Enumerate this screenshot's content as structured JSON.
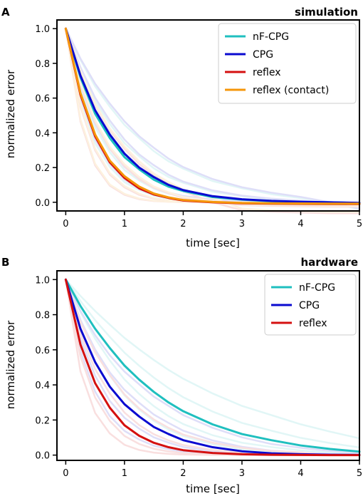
{
  "chart_data": [
    {
      "type": "line",
      "panel": "A",
      "title": "simulation",
      "xlabel": "time [sec]",
      "ylabel": "normalized error",
      "xlim": [
        -0.15,
        5.0
      ],
      "ylim": [
        -0.05,
        1.05
      ],
      "xticks": [
        0,
        1,
        2,
        3,
        4,
        5
      ],
      "yticks": [
        0.0,
        0.2,
        0.4,
        0.6,
        0.8,
        1.0
      ],
      "legend_position": "top-right",
      "series": [
        {
          "name": "nF-CPG",
          "color": "#1fbfbf",
          "x": [
            0,
            0.25,
            0.5,
            0.75,
            1.0,
            1.25,
            1.5,
            1.75,
            2.0,
            2.5,
            3.0,
            3.5,
            4.0,
            4.5,
            5.0
          ],
          "values": [
            1.0,
            0.72,
            0.51,
            0.37,
            0.26,
            0.19,
            0.13,
            0.09,
            0.065,
            0.03,
            0.015,
            0.006,
            0.002,
            0.0,
            -0.005
          ]
        },
        {
          "name": "CPG",
          "color": "#0a0ad0",
          "x": [
            0,
            0.25,
            0.5,
            0.75,
            1.0,
            1.25,
            1.5,
            1.75,
            2.0,
            2.5,
            3.0,
            3.5,
            4.0,
            4.5,
            5.0
          ],
          "values": [
            1.0,
            0.73,
            0.53,
            0.39,
            0.28,
            0.2,
            0.145,
            0.1,
            0.07,
            0.035,
            0.017,
            0.008,
            0.003,
            0.0,
            -0.004
          ]
        },
        {
          "name": "reflex",
          "color": "#d41010",
          "x": [
            0,
            0.25,
            0.5,
            0.75,
            1.0,
            1.25,
            1.5,
            1.75,
            2.0,
            2.5,
            3.0,
            3.5,
            4.0,
            4.5,
            5.0
          ],
          "values": [
            1.0,
            0.62,
            0.38,
            0.23,
            0.14,
            0.08,
            0.045,
            0.025,
            0.01,
            0.0,
            -0.006,
            -0.008,
            -0.009,
            -0.01,
            -0.01
          ]
        },
        {
          "name": "reflex (contact)",
          "color": "#f5960a",
          "x": [
            0,
            0.25,
            0.5,
            0.75,
            1.0,
            1.25,
            1.5,
            1.75,
            2.0,
            2.5,
            3.0,
            3.5,
            4.0,
            4.5,
            5.0
          ],
          "values": [
            1.0,
            0.63,
            0.39,
            0.24,
            0.15,
            0.09,
            0.05,
            0.028,
            0.013,
            0.002,
            -0.004,
            -0.006,
            -0.007,
            -0.008,
            -0.008
          ]
        }
      ]
    },
    {
      "type": "line",
      "panel": "B",
      "title": "hardware",
      "xlabel": "time [sec]",
      "ylabel": "normalized error",
      "xlim": [
        -0.15,
        5.0
      ],
      "ylim": [
        -0.03,
        1.05
      ],
      "xticks": [
        0,
        1,
        2,
        3,
        4,
        5
      ],
      "yticks": [
        0.0,
        0.2,
        0.4,
        0.6,
        0.8,
        1.0
      ],
      "legend_position": "top-right",
      "series": [
        {
          "name": "nF-CPG",
          "color": "#1fbfbf",
          "x": [
            0,
            0.25,
            0.5,
            0.75,
            1.0,
            1.25,
            1.5,
            1.75,
            2.0,
            2.5,
            3.0,
            3.5,
            4.0,
            4.5,
            5.0
          ],
          "values": [
            1.0,
            0.85,
            0.72,
            0.61,
            0.51,
            0.43,
            0.36,
            0.3,
            0.25,
            0.175,
            0.12,
            0.085,
            0.055,
            0.035,
            0.02
          ]
        },
        {
          "name": "CPG",
          "color": "#0a0ad0",
          "x": [
            0,
            0.25,
            0.5,
            0.75,
            1.0,
            1.25,
            1.5,
            1.75,
            2.0,
            2.5,
            3.0,
            3.5,
            4.0,
            4.5,
            5.0
          ],
          "values": [
            1.0,
            0.72,
            0.53,
            0.39,
            0.29,
            0.22,
            0.16,
            0.12,
            0.085,
            0.045,
            0.022,
            0.01,
            0.005,
            0.002,
            0.001
          ]
        },
        {
          "name": "reflex",
          "color": "#d41010",
          "x": [
            0,
            0.25,
            0.5,
            0.75,
            1.0,
            1.25,
            1.5,
            1.75,
            2.0,
            2.5,
            3.0,
            3.5,
            4.0,
            4.5,
            5.0
          ],
          "values": [
            1.0,
            0.63,
            0.41,
            0.27,
            0.17,
            0.11,
            0.07,
            0.045,
            0.028,
            0.012,
            0.005,
            0.002,
            0.001,
            0.0,
            0.0
          ]
        }
      ]
    }
  ]
}
